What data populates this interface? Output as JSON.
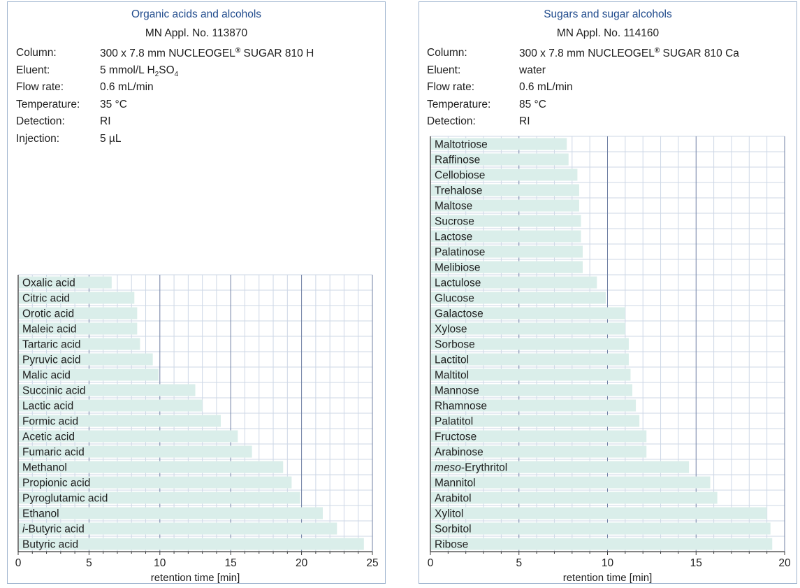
{
  "chart_data": [
    {
      "type": "bar",
      "orientation": "horizontal",
      "title": "Organic acids and alcohols",
      "appl_no": "MN Appl. No. 113870",
      "conditions": [
        {
          "label": "Column:",
          "value": "300 x 7.8 mm NUCLEOGEL",
          "sup": "®",
          "tail": " SUGAR 810 H"
        },
        {
          "label": "Eluent:",
          "value": "5 mmol/L H",
          "sub1": "2",
          "mid": "SO",
          "sub2": "4"
        },
        {
          "label": "Flow rate:",
          "value": "0.6 mL/min"
        },
        {
          "label": "Temperature:",
          "value": "35 °C"
        },
        {
          "label": "Detection:",
          "value": "RI"
        },
        {
          "label": "Injection:",
          "value": "5 µL"
        }
      ],
      "categories": [
        {
          "prefix": "",
          "name": "Oxalic acid"
        },
        {
          "prefix": "",
          "name": "Citric acid"
        },
        {
          "prefix": "",
          "name": "Orotic acid"
        },
        {
          "prefix": "",
          "name": "Maleic acid"
        },
        {
          "prefix": "",
          "name": "Tartaric acid"
        },
        {
          "prefix": "",
          "name": "Pyruvic acid"
        },
        {
          "prefix": "",
          "name": "Malic acid"
        },
        {
          "prefix": "",
          "name": "Succinic acid"
        },
        {
          "prefix": "",
          "name": "Lactic acid"
        },
        {
          "prefix": "",
          "name": "Formic acid"
        },
        {
          "prefix": "",
          "name": "Acetic acid"
        },
        {
          "prefix": "",
          "name": "Fumaric acid"
        },
        {
          "prefix": "",
          "name": "Methanol"
        },
        {
          "prefix": "",
          "name": "Propionic acid"
        },
        {
          "prefix": "",
          "name": "Pyroglutamic acid"
        },
        {
          "prefix": "",
          "name": "Ethanol"
        },
        {
          "prefix": "i",
          "name": "-Butyric acid"
        },
        {
          "prefix": "",
          "name": "Butyric acid"
        }
      ],
      "values": [
        6.6,
        8.2,
        8.4,
        8.4,
        8.6,
        9.5,
        9.9,
        12.5,
        13.0,
        14.3,
        15.5,
        16.5,
        18.7,
        19.3,
        19.9,
        21.5,
        22.5,
        24.4
      ],
      "xlim": [
        0,
        25
      ],
      "xticks": [
        0,
        5,
        10,
        15,
        20,
        25
      ],
      "xlabel": "retention time [min]",
      "ylabel": "",
      "grid": true
    },
    {
      "type": "bar",
      "orientation": "horizontal",
      "title": "Sugars and sugar alcohols",
      "appl_no": "MN Appl. No. 114160",
      "conditions": [
        {
          "label": "Column:",
          "value": "300 x 7.8 mm NUCLEOGEL",
          "sup": "®",
          "tail": " SUGAR 810 Ca"
        },
        {
          "label": "Eluent:",
          "value": "water"
        },
        {
          "label": "Flow rate:",
          "value": "0.6 mL/min"
        },
        {
          "label": "Temperature:",
          "value": "85 °C"
        },
        {
          "label": "Detection:",
          "value": "RI"
        }
      ],
      "categories": [
        {
          "prefix": "",
          "name": "Maltotriose"
        },
        {
          "prefix": "",
          "name": "Raffinose"
        },
        {
          "prefix": "",
          "name": "Cellobiose"
        },
        {
          "prefix": "",
          "name": "Trehalose"
        },
        {
          "prefix": "",
          "name": "Maltose"
        },
        {
          "prefix": "",
          "name": "Sucrose"
        },
        {
          "prefix": "",
          "name": "Lactose"
        },
        {
          "prefix": "",
          "name": "Palatinose"
        },
        {
          "prefix": "",
          "name": "Melibiose"
        },
        {
          "prefix": "",
          "name": "Lactulose"
        },
        {
          "prefix": "",
          "name": "Glucose"
        },
        {
          "prefix": "",
          "name": "Galactose"
        },
        {
          "prefix": "",
          "name": "Xylose"
        },
        {
          "prefix": "",
          "name": "Sorbose"
        },
        {
          "prefix": "",
          "name": "Lactitol"
        },
        {
          "prefix": "",
          "name": "Maltitol"
        },
        {
          "prefix": "",
          "name": "Mannose"
        },
        {
          "prefix": "",
          "name": "Rhamnose"
        },
        {
          "prefix": "",
          "name": "Palatitol"
        },
        {
          "prefix": "",
          "name": "Fructose"
        },
        {
          "prefix": "",
          "name": "Arabinose"
        },
        {
          "prefix": "meso",
          "name": "-Erythritol"
        },
        {
          "prefix": "",
          "name": "Mannitol"
        },
        {
          "prefix": "",
          "name": "Arabitol"
        },
        {
          "prefix": "",
          "name": "Xylitol"
        },
        {
          "prefix": "",
          "name": "Sorbitol"
        },
        {
          "prefix": "",
          "name": "Ribose"
        }
      ],
      "values": [
        7.7,
        7.8,
        8.3,
        8.4,
        8.4,
        8.5,
        8.5,
        8.6,
        8.6,
        9.4,
        9.9,
        11.0,
        11.0,
        11.2,
        11.2,
        11.3,
        11.4,
        11.6,
        11.8,
        12.2,
        12.2,
        14.6,
        15.8,
        16.2,
        19.0,
        19.2,
        19.3
      ],
      "xlim": [
        0,
        20
      ],
      "xticks": [
        0,
        5,
        10,
        15,
        20
      ],
      "xlabel": "retention time [min]",
      "ylabel": "",
      "grid": true
    }
  ],
  "colors": {
    "bar": "#daeeea",
    "grid_minor": "#cdd7e6",
    "grid_major": "#6f7fa3",
    "panel_border": "#9fb4cf",
    "title": "#1f4a8c",
    "text": "#1e1e1e"
  }
}
